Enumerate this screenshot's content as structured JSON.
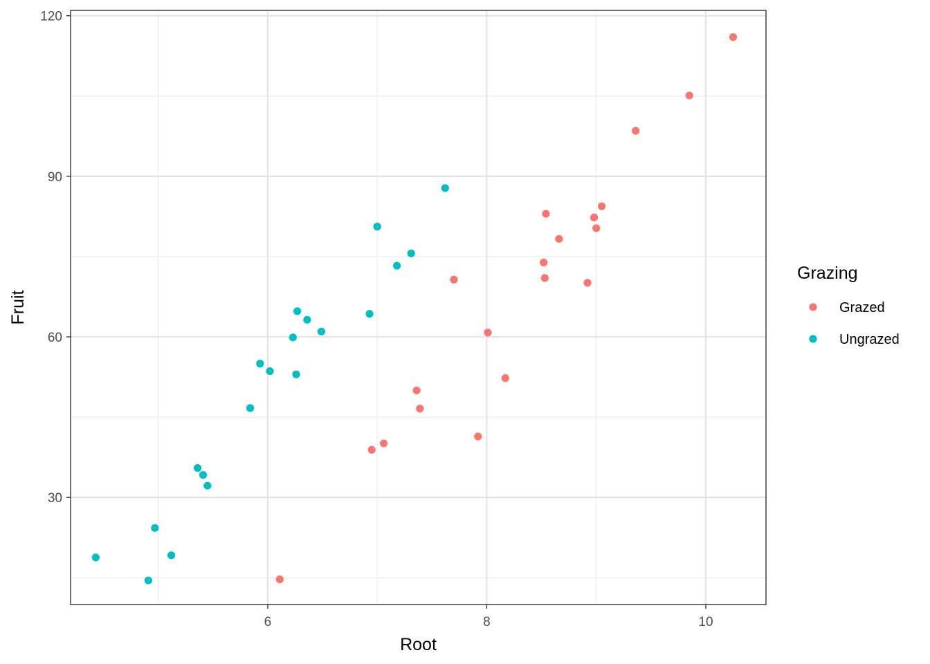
{
  "chart_data": {
    "type": "scatter",
    "title": "",
    "xlabel": "Root",
    "ylabel": "Fruit",
    "xlim": [
      4.2,
      10.55
    ],
    "ylim": [
      10,
      121
    ],
    "x_ticks": [
      6,
      8,
      10
    ],
    "y_ticks": [
      30,
      60,
      90,
      120
    ],
    "x_minor_ticks": [
      5,
      7,
      9
    ],
    "y_minor_ticks": [
      15,
      45,
      75,
      105
    ],
    "grid": true,
    "legend": {
      "title": "Grazing",
      "position": "right"
    },
    "series": [
      {
        "name": "Grazed",
        "color": "#F8766D",
        "points": [
          [
            6.11,
            14.7
          ],
          [
            6.95,
            38.9
          ],
          [
            7.06,
            40.1
          ],
          [
            7.36,
            50.0
          ],
          [
            7.39,
            46.6
          ],
          [
            7.92,
            41.4
          ],
          [
            7.7,
            70.7
          ],
          [
            8.01,
            60.8
          ],
          [
            8.17,
            52.3
          ],
          [
            8.52,
            73.9
          ],
          [
            8.53,
            71.0
          ],
          [
            8.54,
            83.0
          ],
          [
            8.66,
            78.3
          ],
          [
            8.92,
            70.1
          ],
          [
            8.98,
            82.3
          ],
          [
            9.0,
            80.3
          ],
          [
            9.05,
            84.4
          ],
          [
            9.36,
            98.5
          ],
          [
            9.85,
            105.1
          ],
          [
            10.25,
            116.0
          ]
        ]
      },
      {
        "name": "Ungrazed",
        "color": "#00BFC4",
        "points": [
          [
            4.43,
            18.8
          ],
          [
            4.91,
            14.5
          ],
          [
            4.97,
            24.3
          ],
          [
            5.12,
            19.2
          ],
          [
            5.36,
            35.5
          ],
          [
            5.41,
            34.2
          ],
          [
            5.45,
            32.2
          ],
          [
            5.84,
            46.7
          ],
          [
            5.93,
            55.0
          ],
          [
            6.02,
            53.6
          ],
          [
            6.23,
            59.9
          ],
          [
            6.26,
            53.0
          ],
          [
            6.27,
            64.8
          ],
          [
            6.36,
            63.2
          ],
          [
            6.49,
            61.0
          ],
          [
            6.93,
            64.3
          ],
          [
            7.0,
            80.6
          ],
          [
            7.18,
            73.3
          ],
          [
            7.31,
            75.6
          ],
          [
            7.62,
            87.8
          ]
        ]
      }
    ]
  }
}
